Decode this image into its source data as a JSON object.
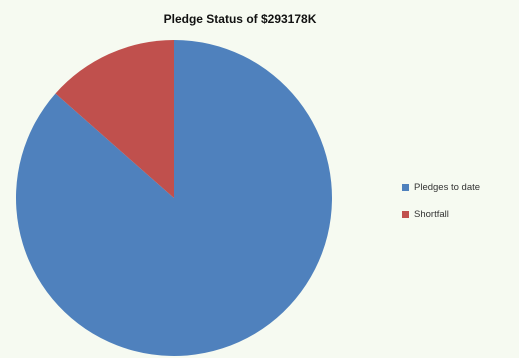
{
  "chart_data": {
    "type": "pie",
    "title": "Pledge Status of $293178K",
    "categories": [
      "Pledges to date",
      "Shortfall"
    ],
    "values": [
      86.5,
      13.5
    ],
    "colors": [
      "#4f81bd",
      "#c0504d"
    ],
    "legend_position": "right"
  }
}
